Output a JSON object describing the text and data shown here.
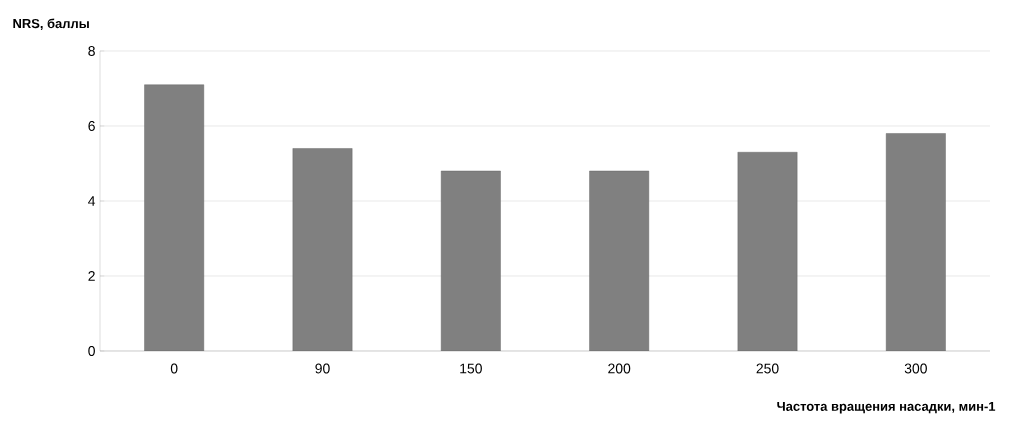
{
  "chart_data": {
    "type": "bar",
    "ylabel": "NRS, баллы",
    "xlabel": "Частота вращения насадки, мин-1",
    "categories": [
      "0",
      "90",
      "150",
      "200",
      "250",
      "300"
    ],
    "values": [
      7.1,
      5.4,
      4.8,
      4.8,
      5.3,
      5.8
    ],
    "color": "#808080",
    "ylim": [
      0,
      8
    ],
    "yticks": [
      0,
      2,
      4,
      6,
      8
    ],
    "grid": "y"
  }
}
